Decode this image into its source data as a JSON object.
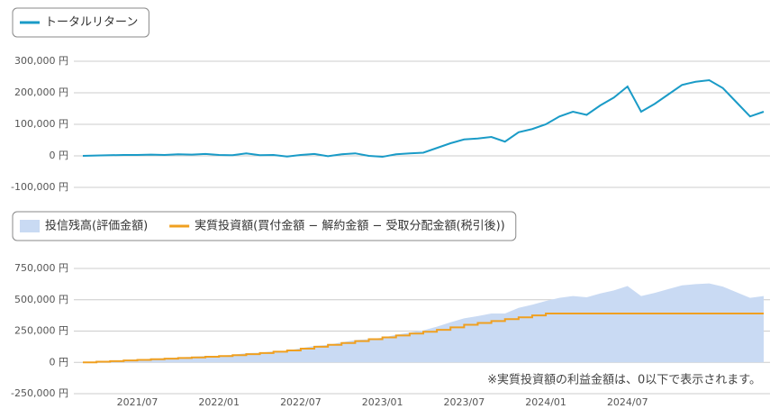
{
  "chart_data": [
    {
      "type": "line",
      "legend": "top-left",
      "x": [
        "2021/03",
        "2021/04",
        "2021/05",
        "2021/06",
        "2021/07",
        "2021/08",
        "2021/09",
        "2021/10",
        "2021/11",
        "2021/12",
        "2022/01",
        "2022/02",
        "2022/03",
        "2022/04",
        "2022/05",
        "2022/06",
        "2022/07",
        "2022/08",
        "2022/09",
        "2022/10",
        "2022/11",
        "2022/12",
        "2023/01",
        "2023/02",
        "2023/03",
        "2023/04",
        "2023/05",
        "2023/06",
        "2023/07",
        "2023/08",
        "2023/09",
        "2023/10",
        "2023/11",
        "2023/12",
        "2024/01",
        "2024/02",
        "2024/03",
        "2024/04",
        "2024/05",
        "2024/06",
        "2024/07",
        "2024/08",
        "2024/09",
        "2024/10",
        "2024/11",
        "2024/12",
        "2025/01",
        "2025/02",
        "2025/03",
        "2025/04",
        "2025/05"
      ],
      "ylim": [
        -100000,
        300000
      ],
      "yticks": [
        {
          "value": -100000,
          "label": "-100,000 円"
        },
        {
          "value": 0,
          "label": "0 円"
        },
        {
          "value": 100000,
          "label": "100,000 円"
        },
        {
          "value": 200000,
          "label": "200,000 円"
        },
        {
          "value": 300000,
          "label": "300,000 円"
        }
      ],
      "grid": true,
      "series": [
        {
          "name": "トータルリターン",
          "color": "#1a9bc7",
          "style": "line",
          "values": [
            0,
            1000,
            2000,
            3000,
            3000,
            4000,
            3000,
            5000,
            4000,
            6000,
            3000,
            2000,
            8000,
            2000,
            3000,
            -2000,
            3000,
            6000,
            -1000,
            5000,
            8000,
            0,
            -3000,
            5000,
            8000,
            10000,
            25000,
            40000,
            52000,
            55000,
            60000,
            45000,
            75000,
            85000,
            100000,
            125000,
            140000,
            130000,
            160000,
            185000,
            220000,
            140000,
            165000,
            195000,
            225000,
            235000,
            240000,
            215000,
            170000,
            125000,
            140000
          ]
        }
      ]
    },
    {
      "type": "area",
      "legend": "top-left",
      "x": [
        "2021/03",
        "2021/04",
        "2021/05",
        "2021/06",
        "2021/07",
        "2021/08",
        "2021/09",
        "2021/10",
        "2021/11",
        "2021/12",
        "2022/01",
        "2022/02",
        "2022/03",
        "2022/04",
        "2022/05",
        "2022/06",
        "2022/07",
        "2022/08",
        "2022/09",
        "2022/10",
        "2022/11",
        "2022/12",
        "2023/01",
        "2023/02",
        "2023/03",
        "2023/04",
        "2023/05",
        "2023/06",
        "2023/07",
        "2023/08",
        "2023/09",
        "2023/10",
        "2023/11",
        "2023/12",
        "2024/01",
        "2024/02",
        "2024/03",
        "2024/04",
        "2024/05",
        "2024/06",
        "2024/07",
        "2024/08",
        "2024/09",
        "2024/10",
        "2024/11",
        "2024/12",
        "2025/01",
        "2025/02",
        "2025/03",
        "2025/04",
        "2025/05"
      ],
      "xticks": [
        "2021/07",
        "2022/01",
        "2022/07",
        "2023/01",
        "2023/07",
        "2024/01",
        "2024/07"
      ],
      "ylim": [
        -250000,
        750000
      ],
      "yticks": [
        {
          "value": -250000,
          "label": "-250,000 円"
        },
        {
          "value": 0,
          "label": "0 円"
        },
        {
          "value": 250000,
          "label": "250,000 円"
        },
        {
          "value": 500000,
          "label": "500,000 円"
        },
        {
          "value": 750000,
          "label": "750,000 円"
        }
      ],
      "grid": true,
      "annotation": "※実質投資額の利益金額は、0以下で表示されます。",
      "series": [
        {
          "name": "投信残高(評価金額)",
          "color": "#c9daf3",
          "style": "area",
          "values": [
            0,
            6000,
            12000,
            18000,
            23000,
            29000,
            33000,
            40000,
            44000,
            51000,
            53000,
            60000,
            74000,
            77000,
            88000,
            93000,
            113000,
            131000,
            139000,
            160000,
            178000,
            185000,
            197000,
            220000,
            238000,
            255000,
            285000,
            320000,
            352000,
            370000,
            390000,
            390000,
            435000,
            460000,
            490000,
            515000,
            530000,
            520000,
            550000,
            575000,
            610000,
            530000,
            555000,
            585000,
            615000,
            625000,
            630000,
            605000,
            560000,
            515000,
            530000
          ]
        },
        {
          "name": "実質投資額(買付金額 − 解約金額 − 受取分配金額(税引後))",
          "color": "#f0a020",
          "style": "step",
          "values": [
            0,
            5000,
            10000,
            15000,
            20000,
            25000,
            30000,
            35000,
            40000,
            45000,
            50000,
            58000,
            66000,
            75000,
            85000,
            95000,
            110000,
            125000,
            140000,
            155000,
            170000,
            185000,
            200000,
            215000,
            230000,
            245000,
            260000,
            280000,
            300000,
            315000,
            330000,
            345000,
            360000,
            375000,
            390000,
            390000,
            390000,
            390000,
            390000,
            390000,
            390000,
            390000,
            390000,
            390000,
            390000,
            390000,
            390000,
            390000,
            390000,
            390000,
            390000
          ]
        }
      ]
    }
  ]
}
